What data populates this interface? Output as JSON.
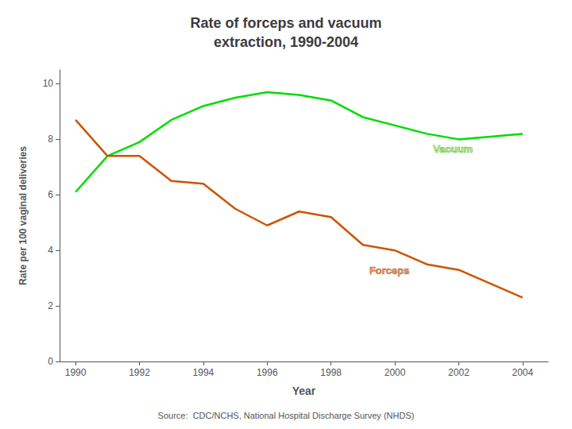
{
  "chart_data": {
    "type": "line",
    "title": "Rate of forceps and vacuum\nextraction, 1990-2004",
    "x_label": "Year",
    "y_label": "Rate per 100 vaginal deliveries",
    "source": "Source:  CDC/NCHS, National Hospital Discharge Survey (NHDS)",
    "x": [
      1990,
      1991,
      1992,
      1993,
      1994,
      1995,
      1996,
      1997,
      1998,
      1999,
      2000,
      2001,
      2002,
      2003,
      2004
    ],
    "series": [
      {
        "name": "Vacuum",
        "color": "#00dd00",
        "values": [
          6.1,
          7.4,
          7.9,
          8.7,
          9.2,
          9.5,
          9.7,
          9.6,
          9.4,
          8.8,
          8.5,
          8.2,
          8.0,
          8.1,
          8.2
        ]
      },
      {
        "name": "Forceps",
        "color": "#cc5500",
        "values": [
          8.7,
          7.4,
          7.4,
          6.5,
          6.4,
          5.5,
          4.9,
          5.4,
          5.2,
          4.2,
          4.0,
          3.5,
          3.3,
          2.8,
          2.3
        ]
      }
    ],
    "annotations": [
      {
        "text": "Vacuum",
        "x": 2001.2,
        "y": 7.45,
        "color": "#88ff44"
      },
      {
        "text": "Forceps",
        "x": 1999.2,
        "y": 3.05,
        "color": "#ff7722"
      }
    ],
    "xlim": [
      1989.5,
      2004.8
    ],
    "xticks": [
      1990,
      1992,
      1994,
      1996,
      1998,
      2000,
      2002,
      2004
    ],
    "ylim": [
      0,
      10.5
    ],
    "yticks": [
      0,
      2,
      4,
      6,
      8,
      10
    ],
    "grid": false
  }
}
